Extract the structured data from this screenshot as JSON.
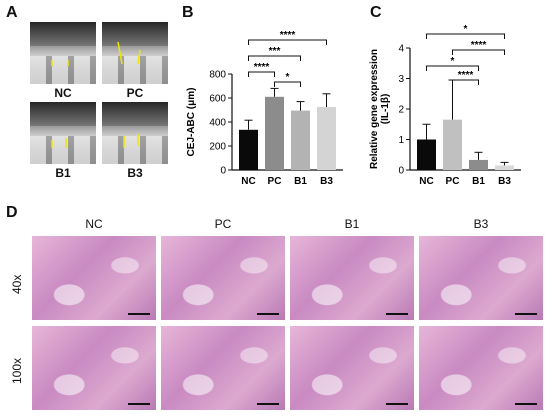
{
  "panels": {
    "A": {
      "letter": "A",
      "labels": [
        "NC",
        "PC",
        "B1",
        "B3"
      ]
    },
    "B": {
      "letter": "B"
    },
    "C": {
      "letter": "C"
    },
    "D": {
      "letter": "D",
      "columns": [
        "NC",
        "PC",
        "B1",
        "B3"
      ],
      "rows": [
        "40x",
        "100x"
      ]
    }
  },
  "chart_data": [
    {
      "type": "bar",
      "panel": "B",
      "categories": [
        "NC",
        "PC",
        "B1",
        "B3"
      ],
      "values": [
        335,
        610,
        495,
        525
      ],
      "errors": [
        80,
        70,
        75,
        110
      ],
      "colors": [
        "#0a0a0a",
        "#8c8c8c",
        "#b3b3b3",
        "#d4d4d4"
      ],
      "ylabel": "CEJ-ABC (μm)",
      "ylim": [
        0,
        800
      ],
      "yticks": [
        0,
        200,
        400,
        600,
        800
      ],
      "significance": [
        {
          "from": "NC",
          "to": "B3",
          "label": "****"
        },
        {
          "from": "NC",
          "to": "B1",
          "label": "***"
        },
        {
          "from": "NC",
          "to": "PC",
          "label": "****"
        },
        {
          "from": "PC",
          "to": "B1",
          "label": "*"
        }
      ]
    },
    {
      "type": "bar",
      "panel": "C",
      "categories": [
        "NC",
        "PC",
        "B1",
        "B3"
      ],
      "values": [
        1.0,
        1.65,
        0.33,
        0.15
      ],
      "errors": [
        0.5,
        1.3,
        0.25,
        0.1
      ],
      "colors": [
        "#0a0a0a",
        "#c0c0c0",
        "#8c8c8c",
        "#d9d9d9"
      ],
      "ylabel": "Relative gene expression (IL-1β)",
      "ylim": [
        0,
        4
      ],
      "yticks": [
        0,
        1,
        2,
        3,
        4
      ],
      "significance": [
        {
          "from": "NC",
          "to": "B3",
          "label": "*"
        },
        {
          "from": "PC",
          "to": "B3",
          "label": "****"
        },
        {
          "from": "NC",
          "to": "B1",
          "label": "*"
        },
        {
          "from": "PC",
          "to": "B1",
          "label": "****"
        }
      ]
    }
  ]
}
